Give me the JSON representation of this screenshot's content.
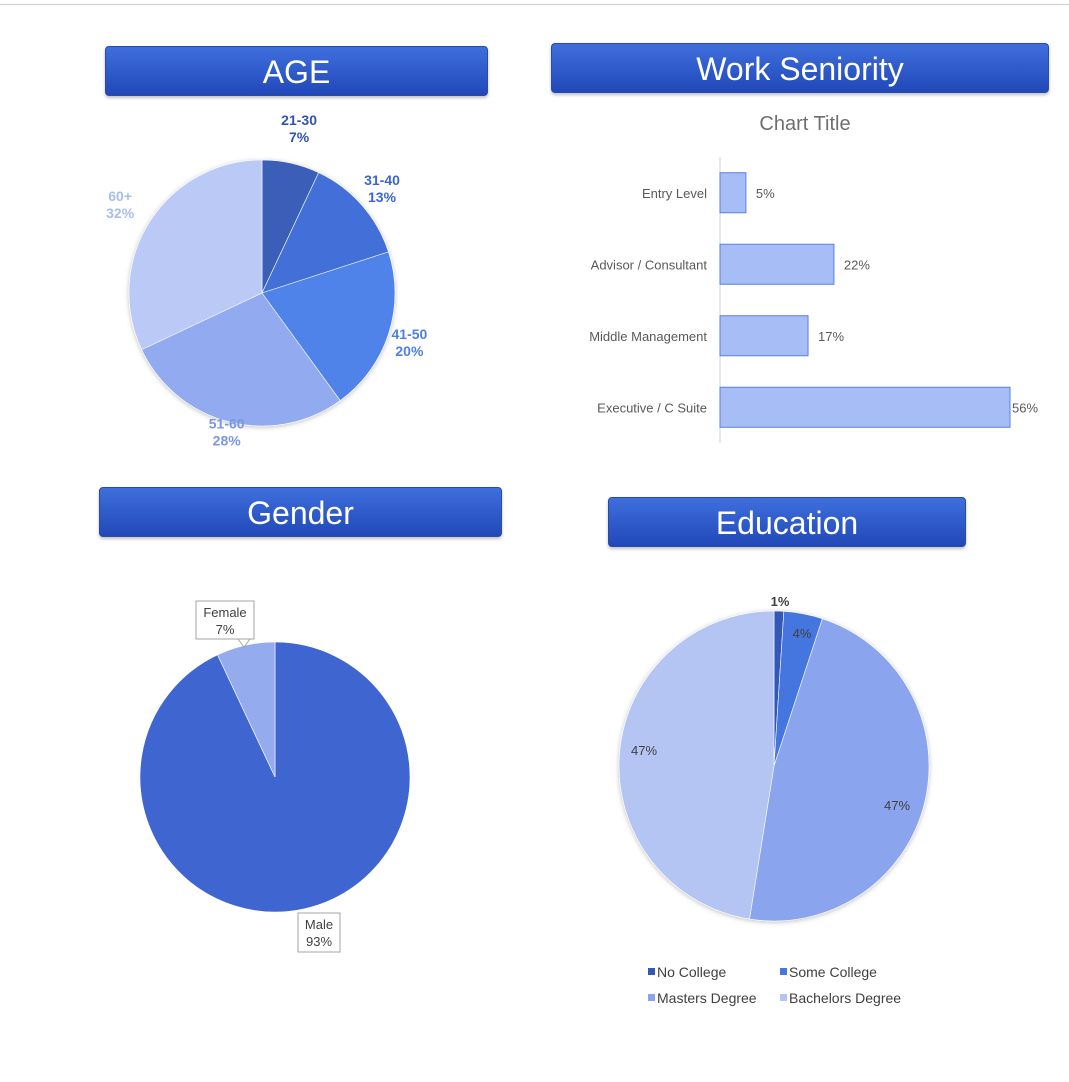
{
  "headers": {
    "age": "AGE",
    "seniority": "Work Seniority",
    "gender": "Gender",
    "education": "Education"
  },
  "colors": {
    "header_top": "#3f6fdd",
    "header_bottom": "#2148b8",
    "bar_fill": "#a6bdf5",
    "bar_stroke": "#5b7fe0"
  },
  "chart_data": [
    {
      "type": "pie",
      "header": "AGE",
      "slices": [
        {
          "label": "21-30",
          "pct": "7%",
          "value": 7,
          "color": "#3a5fb8",
          "label_color": "#2f54b0"
        },
        {
          "label": "31-40",
          "pct": "13%",
          "value": 13,
          "color": "#4370d8",
          "label_color": "#3a66d2"
        },
        {
          "label": "41-50",
          "pct": "20%",
          "value": 20,
          "color": "#5083ea",
          "label_color": "#4d7fe6"
        },
        {
          "label": "51-60",
          "pct": "28%",
          "value": 28,
          "color": "#92aaf0",
          "label_color": "#7b96e6"
        },
        {
          "label": "60+",
          "pct": "32%",
          "value": 32,
          "color": "#bac9f5",
          "label_color": "#a9bcef"
        }
      ]
    },
    {
      "type": "bar",
      "orientation": "horizontal",
      "header": "Work Seniority",
      "title": "Chart Title",
      "categories": [
        "Entry Level",
        "Advisor / Consultant",
        "Middle Management",
        "Executive / C Suite"
      ],
      "values": [
        5,
        22,
        17,
        56
      ],
      "value_labels": [
        "5%",
        "22%",
        "17%",
        "56%"
      ],
      "xlim": [
        0,
        56
      ]
    },
    {
      "type": "pie",
      "header": "Gender",
      "slices": [
        {
          "label": "Male",
          "pct": "93%",
          "value": 93,
          "color": "#3f66d0"
        },
        {
          "label": "Female",
          "pct": "7%",
          "value": 7,
          "color": "#94acee"
        }
      ]
    },
    {
      "type": "pie",
      "header": "Education",
      "slices": [
        {
          "label": "No College",
          "pct": "1%",
          "value": 1,
          "color": "#3358b8"
        },
        {
          "label": "Some College",
          "pct": "4%",
          "value": 4,
          "color": "#4576e0"
        },
        {
          "label": "Masters Degree",
          "pct": "47%",
          "value": 47,
          "color": "#8aa4ee"
        },
        {
          "label": "Bachelors Degree",
          "pct": "47%",
          "value": 47,
          "color": "#b4c5f3"
        }
      ],
      "legend": [
        "No College",
        "Some College",
        "Masters Degree",
        "Bachelors Degree"
      ],
      "legend_position": "bottom"
    }
  ]
}
